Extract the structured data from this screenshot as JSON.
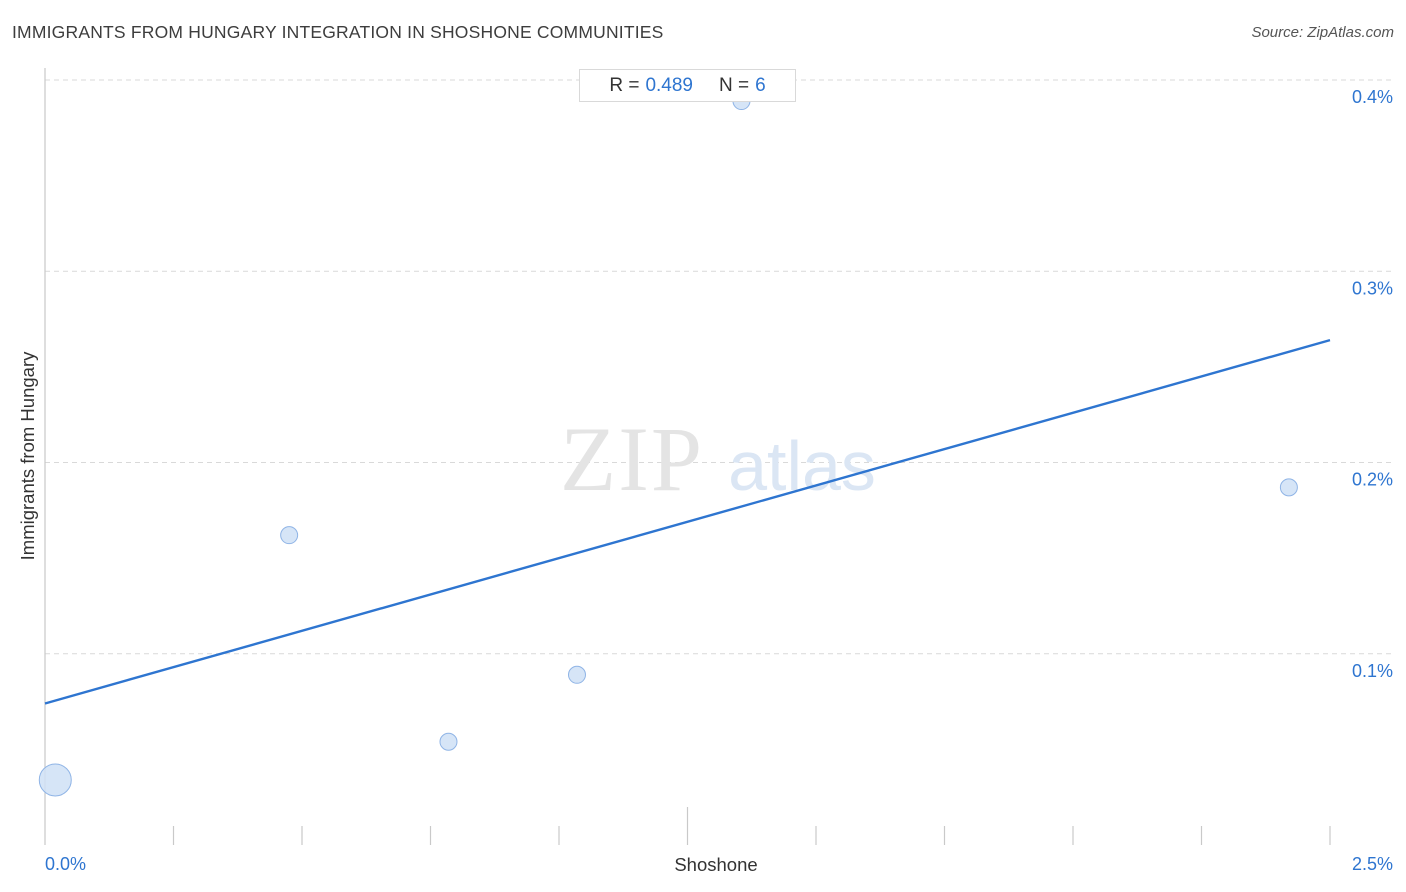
{
  "header": {
    "title": "IMMIGRANTS FROM HUNGARY INTEGRATION IN SHOSHONE COMMUNITIES",
    "source": "Source: ZipAtlas.com"
  },
  "stats": {
    "r_label": "R =",
    "r_value": "0.489",
    "n_label": "N =",
    "n_value": "6"
  },
  "watermark": {
    "zip": "ZIP",
    "atlas": "atlas"
  },
  "colors": {
    "accent": "#2e75d0",
    "point_fill": "#cfe0f6",
    "point_stroke": "#8fb4e6",
    "grid": "#d9d9d9",
    "axis": "#c9c9c9"
  },
  "chart_data": {
    "type": "scatter",
    "xlabel": "Shoshone",
    "ylabel": "Immigrants from Hungary",
    "xlim": [
      0,
      2.5
    ],
    "ylim": [
      0,
      0.4
    ],
    "x_tick_labels": [
      {
        "value": 0,
        "label": "0.0%"
      },
      {
        "value": 2.5,
        "label": "2.5%"
      }
    ],
    "y_tick_labels": [
      {
        "value": 0.1,
        "label": "0.1%"
      },
      {
        "value": 0.2,
        "label": "0.2%"
      },
      {
        "value": 0.3,
        "label": "0.3%"
      },
      {
        "value": 0.4,
        "label": "0.4%"
      }
    ],
    "points": [
      {
        "x": 0.02,
        "y": 0.034,
        "size": "large"
      },
      {
        "x": 0.475,
        "y": 0.162,
        "size": "small"
      },
      {
        "x": 0.785,
        "y": 0.054,
        "size": "small"
      },
      {
        "x": 1.035,
        "y": 0.089,
        "size": "small"
      },
      {
        "x": 1.355,
        "y": 0.389,
        "size": "small"
      },
      {
        "x": 2.42,
        "y": 0.187,
        "size": "small"
      }
    ],
    "trendline": {
      "x": [
        0,
        2.5
      ],
      "y": [
        0.074,
        0.264
      ]
    },
    "grid": true,
    "n_minor_x_ticks": 10
  }
}
